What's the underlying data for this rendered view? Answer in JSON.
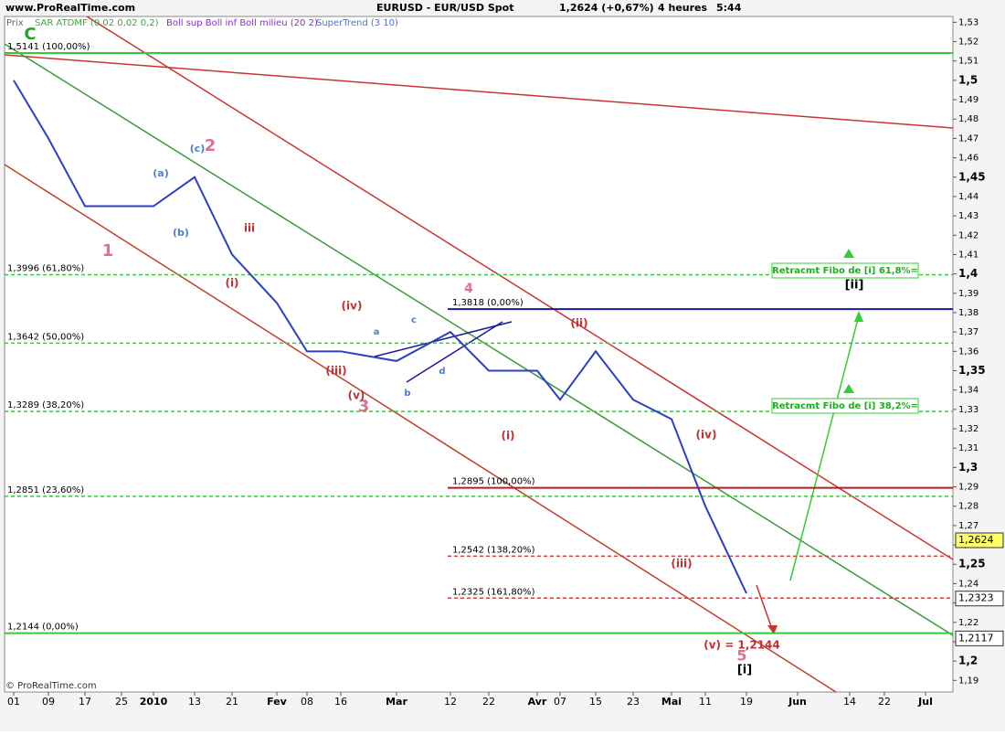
{
  "header": {
    "site": "www.ProRealTime.com",
    "instrument": "EURUSD - EUR/USD Spot",
    "quote": "1,2624 (+0,67%)",
    "period": "4 heures",
    "time": "5:44"
  },
  "footer": "© ProRealTime.com",
  "chart_data": {
    "type": "line",
    "categories": [
      "01",
      "09",
      "17",
      "25",
      "2010",
      "13",
      "21",
      "Fev",
      "08",
      "16",
      "Mar",
      "12",
      "22",
      "Avr",
      "07",
      "15",
      "23",
      "Mai",
      "11",
      "19",
      "Jun",
      "14",
      "22",
      "Jul"
    ],
    "series": [
      {
        "name": "Prix",
        "color": "#2b3fc4",
        "values": [
          1.5,
          1.47,
          1.435,
          1.435,
          1.435,
          1.45,
          1.41,
          1.385,
          1.36,
          1.36,
          1.355,
          1.37,
          1.35,
          1.35,
          1.335,
          1.36,
          1.335,
          1.325,
          1.28,
          1.235,
          null,
          null,
          null,
          null
        ]
      }
    ],
    "indicators": [
      {
        "name": "SAR ATDMF (0,02 0,02 0,2)",
        "color": "#3aa83a"
      },
      {
        "name": "Boll sup Boll inf Boll milieu (20 2)",
        "color": "#8a2be2"
      },
      {
        "name": "SuperTrend (3 10)",
        "color": "#4a6fe0"
      }
    ],
    "ylim": [
      1.184,
      1.533
    ],
    "yticks": [
      {
        "value": 1.19,
        "label": "1,19"
      },
      {
        "value": 1.2,
        "label": "1,2"
      },
      {
        "value": 1.21,
        "label": "1,21"
      },
      {
        "value": 1.22,
        "label": "1,22"
      },
      {
        "value": 1.23,
        "label": "1,23"
      },
      {
        "value": 1.24,
        "label": "1,24"
      },
      {
        "value": 1.25,
        "label": "1,25"
      },
      {
        "value": 1.26,
        "label": "1,26"
      },
      {
        "value": 1.27,
        "label": "1,27"
      },
      {
        "value": 1.28,
        "label": "1,28"
      },
      {
        "value": 1.29,
        "label": "1,29"
      },
      {
        "value": 1.3,
        "label": "1,3"
      },
      {
        "value": 1.31,
        "label": "1,31"
      },
      {
        "value": 1.32,
        "label": "1,32"
      },
      {
        "value": 1.33,
        "label": "1,33"
      },
      {
        "value": 1.34,
        "label": "1,34"
      },
      {
        "value": 1.35,
        "label": "1,35"
      },
      {
        "value": 1.36,
        "label": "1,36"
      },
      {
        "value": 1.37,
        "label": "1,37"
      },
      {
        "value": 1.38,
        "label": "1,38"
      },
      {
        "value": 1.39,
        "label": "1,39"
      },
      {
        "value": 1.4,
        "label": "1,4"
      },
      {
        "value": 1.41,
        "label": "1,41"
      },
      {
        "value": 1.42,
        "label": "1,42"
      },
      {
        "value": 1.43,
        "label": "1,43"
      },
      {
        "value": 1.44,
        "label": "1,44"
      },
      {
        "value": 1.45,
        "label": "1,45"
      },
      {
        "value": 1.46,
        "label": "1,46"
      },
      {
        "value": 1.47,
        "label": "1,47"
      },
      {
        "value": 1.48,
        "label": "1,48"
      },
      {
        "value": 1.49,
        "label": "1,49"
      },
      {
        "value": 1.5,
        "label": "1,5"
      },
      {
        "value": 1.51,
        "label": "1,51"
      },
      {
        "value": 1.52,
        "label": "1,52"
      },
      {
        "value": 1.53,
        "label": "1,53"
      }
    ],
    "retracement_levels": [
      {
        "value": 1.5141,
        "label": "1,5141 (100,00%)",
        "color": "#33cc33",
        "style": "solid"
      },
      {
        "value": 1.3996,
        "label": "1,3996 (61,80%)",
        "color": "#33cc33",
        "style": "dashed"
      },
      {
        "value": 1.3642,
        "label": "1,3642 (50,00%)",
        "color": "#33cc33",
        "style": "dashed"
      },
      {
        "value": 1.3289,
        "label": "1,3289 (38,20%)",
        "color": "#33cc33",
        "style": "dashed"
      },
      {
        "value": 1.2851,
        "label": "1,2851 (23,60%)",
        "color": "#33cc33",
        "style": "dashed"
      },
      {
        "value": 1.2144,
        "label": "1,2144 (0,00%)",
        "color": "#33cc33",
        "style": "solid"
      }
    ],
    "extension_levels": [
      {
        "value": 1.3818,
        "label": "1,3818 (0,00%)",
        "color": "#1a1a9a",
        "style": "solid"
      },
      {
        "value": 1.2895,
        "label": "1,2895 (100,00%)",
        "color": "#b02020",
        "style": "solid"
      },
      {
        "value": 1.2542,
        "label": "1,2542 (138,20%)",
        "color": "#d04040",
        "style": "dashed"
      },
      {
        "value": 1.2325,
        "label": "1,2325 (161,80%)",
        "color": "#d04040",
        "style": "dashed"
      }
    ],
    "price_tags": [
      {
        "value": 1.2624,
        "label": "1,2624",
        "color": "#ffff66"
      },
      {
        "value": 1.2323,
        "label": "1,2323",
        "color": "#ffffff"
      },
      {
        "value": 1.2117,
        "label": "1,2117",
        "color": "#ffffff"
      }
    ],
    "annotations": [
      {
        "text": "C",
        "color": "#2e9e2e"
      },
      {
        "text": "1",
        "color": "#e07090"
      },
      {
        "text": "2",
        "color": "#e07090"
      },
      {
        "text": "3",
        "color": "#e07090"
      },
      {
        "text": "4",
        "color": "#e07090"
      },
      {
        "text": "5",
        "color": "#e07090"
      },
      {
        "text": "(a)",
        "color": "#4a7fd0"
      },
      {
        "text": "(b)",
        "color": "#4a7fd0"
      },
      {
        "text": "(c)",
        "color": "#4a7fd0"
      },
      {
        "text": "(i)",
        "color": "#c03030"
      },
      {
        "text": "iii",
        "color": "#c03030"
      },
      {
        "text": "(iv)",
        "color": "#c03030"
      },
      {
        "text": "(iii)",
        "color": "#c03030"
      },
      {
        "text": "(v)",
        "color": "#c03030"
      },
      {
        "text": "a",
        "color": "#4a7fd0"
      },
      {
        "text": "b",
        "color": "#4a7fd0"
      },
      {
        "text": "c",
        "color": "#4a7fd0"
      },
      {
        "text": "d",
        "color": "#4a7fd0"
      },
      {
        "text": "(i)",
        "color": "#c03030"
      },
      {
        "text": "(ii)",
        "color": "#c03030"
      },
      {
        "text": "(iv)",
        "color": "#c03030"
      },
      {
        "text": "(iii)",
        "color": "#c03030"
      },
      {
        "text": "(v) = 1,2144",
        "color": "#c03030"
      },
      {
        "text": "[i]",
        "color": "#000000"
      },
      {
        "text": "[ii]",
        "color": "#000000"
      },
      {
        "text": "Retracmt Fibo de [i] 61,8%=",
        "color": "#22aa22"
      },
      {
        "text": "Retracmt Fibo de [i] 38,2%=",
        "color": "#22aa22"
      }
    ]
  }
}
